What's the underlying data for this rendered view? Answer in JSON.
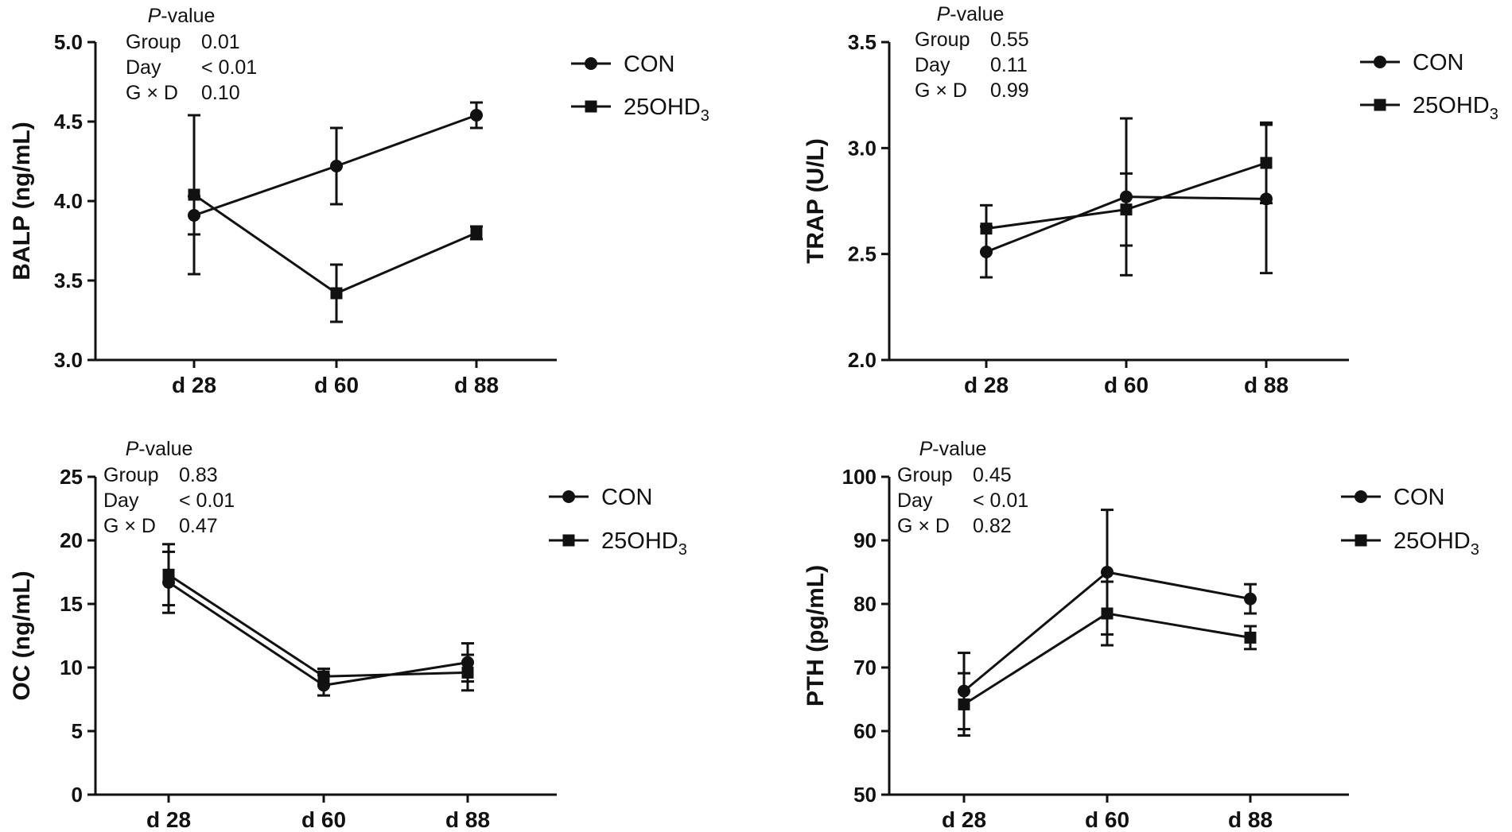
{
  "chart_data": [
    {
      "type": "line",
      "panel": "top-left",
      "ylabel": "BALP (ng/mL)",
      "categories": [
        "d 28",
        "d 60",
        "d 88"
      ],
      "ylim": [
        3.0,
        5.0
      ],
      "yticks": [
        "3.0",
        "3.5",
        "4.0",
        "4.5",
        "5.0"
      ],
      "ytick_values": [
        3.0,
        3.5,
        4.0,
        4.5,
        5.0
      ],
      "stats": {
        "header": "P-value",
        "rows": [
          {
            "label": "Group",
            "value": "0.01"
          },
          {
            "label": "Day",
            "value": "< 0.01"
          },
          {
            "label": "G × D",
            "value": "0.10"
          }
        ]
      },
      "legend": {
        "position": "right",
        "con_label": "CON",
        "ohd_label": "25OHD",
        "ohd_sub": "3"
      },
      "series": [
        {
          "name": "CON",
          "marker": "circle",
          "values": [
            3.91,
            4.22,
            4.54
          ],
          "errors": [
            0.12,
            0.24,
            0.08
          ]
        },
        {
          "name": "25OHD3",
          "marker": "square",
          "values": [
            4.04,
            3.42,
            3.8
          ],
          "errors": [
            0.5,
            0.18,
            0.04
          ]
        }
      ]
    },
    {
      "type": "line",
      "panel": "top-right",
      "ylabel": "TRAP (U/L)",
      "categories": [
        "d 28",
        "d 60",
        "d 88"
      ],
      "ylim": [
        2.0,
        3.5
      ],
      "yticks": [
        "2.0",
        "2.5",
        "3.0",
        "3.5"
      ],
      "ytick_values": [
        2.0,
        2.5,
        3.0,
        3.5
      ],
      "stats": {
        "header": "P-value",
        "rows": [
          {
            "label": "Group",
            "value": "0.55"
          },
          {
            "label": "Day",
            "value": "0.11"
          },
          {
            "label": "G × D",
            "value": "0.99"
          }
        ]
      },
      "legend": {
        "position": "right",
        "con_label": "CON",
        "ohd_label": "25OHD",
        "ohd_sub": "3"
      },
      "series": [
        {
          "name": "CON",
          "marker": "circle",
          "values": [
            2.51,
            2.77,
            2.76
          ],
          "errors": [
            0.12,
            0.37,
            0.35
          ]
        },
        {
          "name": "25OHD3",
          "marker": "square",
          "values": [
            2.62,
            2.71,
            2.93
          ],
          "errors": [
            0.11,
            0.17,
            0.19
          ]
        }
      ]
    },
    {
      "type": "line",
      "panel": "bottom-left",
      "ylabel": "OC (ng/mL)",
      "categories": [
        "d 28",
        "d 60",
        "d 88"
      ],
      "ylim": [
        0,
        25
      ],
      "yticks": [
        "0",
        "5",
        "10",
        "15",
        "20",
        "25"
      ],
      "ytick_values": [
        0,
        5,
        10,
        15,
        20,
        25
      ],
      "stats": {
        "header": "P-value",
        "rows": [
          {
            "label": "Group",
            "value": "0.83"
          },
          {
            "label": "Day",
            "value": "< 0.01"
          },
          {
            "label": "G × D",
            "value": "0.47"
          }
        ]
      },
      "legend": {
        "position": "right",
        "con_label": "CON",
        "ohd_label": "25OHD",
        "ohd_sub": "3"
      },
      "series": [
        {
          "name": "CON",
          "marker": "circle",
          "values": [
            16.7,
            8.6,
            10.4
          ],
          "errors": [
            2.4,
            0.8,
            1.5
          ]
        },
        {
          "name": "25OHD3",
          "marker": "square",
          "values": [
            17.3,
            9.3,
            9.6
          ],
          "errors": [
            2.4,
            0.6,
            1.4
          ]
        }
      ]
    },
    {
      "type": "line",
      "panel": "bottom-right",
      "ylabel": "PTH (pg/mL)",
      "categories": [
        "d 28",
        "d 60",
        "d 88"
      ],
      "ylim": [
        50,
        100
      ],
      "yticks": [
        "50",
        "60",
        "70",
        "80",
        "90",
        "100"
      ],
      "ytick_values": [
        50,
        60,
        70,
        80,
        90,
        100
      ],
      "stats": {
        "header": "P-value",
        "rows": [
          {
            "label": "Group",
            "value": "0.45"
          },
          {
            "label": "Day",
            "value": "< 0.01"
          },
          {
            "label": "G × D",
            "value": "0.82"
          }
        ]
      },
      "legend": {
        "position": "right",
        "con_label": "CON",
        "ohd_label": "25OHD",
        "ohd_sub": "3"
      },
      "series": [
        {
          "name": "CON",
          "marker": "circle",
          "values": [
            66.3,
            85.0,
            80.8
          ],
          "errors": [
            6.0,
            9.8,
            2.3
          ]
        },
        {
          "name": "25OHD3",
          "marker": "square",
          "values": [
            64.2,
            78.5,
            74.7
          ],
          "errors": [
            4.9,
            5.0,
            1.8
          ]
        }
      ]
    }
  ]
}
